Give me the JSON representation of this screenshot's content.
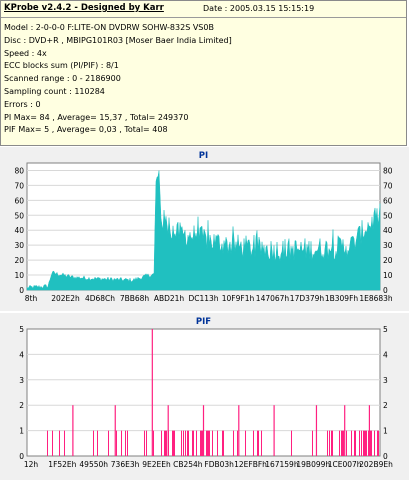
{
  "info": {
    "header": "KProbe v2.4.2 - Designed by Karr",
    "date": "Date : 2005.03.15 15:15:19",
    "lines": [
      "Model : 2-0-0-0 F:LITE-ON DVDRW SOHW-832S  VS0B",
      "Disc : DVD+R , MBIPG101R03 [Moser Baer India Limited]",
      "Speed : 4x",
      "ECC blocks sum (PI/PIF) : 8/1",
      "Scanned range : 0 - 2186900",
      "Sampling count : 110284",
      "Errors : 0",
      "PI Max= 84 , Average= 15,37 , Total= 249370",
      "PIF Max= 5 , Average= 0,03 , Total= 408"
    ]
  },
  "chart_data": [
    {
      "type": "area",
      "title": "PI",
      "color": "#20c0c0",
      "ylim": [
        0,
        85
      ],
      "y_ticks": [
        "0",
        "10",
        "20",
        "30",
        "40",
        "50",
        "60",
        "70",
        "80"
      ],
      "x_ticks": [
        "8th",
        "202E2h",
        "4D68Ch",
        "7BB68h",
        "ABD21h",
        "DC113h",
        "10F9F1h",
        "147067h",
        "17D379h",
        "1B309Fh",
        "1E8683h"
      ],
      "profile": [
        [
          0,
          1
        ],
        [
          0.06,
          2
        ],
        [
          0.07,
          11
        ],
        [
          0.13,
          8
        ],
        [
          0.2,
          7
        ],
        [
          0.3,
          6
        ],
        [
          0.34,
          9
        ],
        [
          0.36,
          10
        ],
        [
          0.365,
          70
        ],
        [
          0.375,
          78
        ],
        [
          0.38,
          48
        ],
        [
          0.42,
          38
        ],
        [
          0.48,
          36
        ],
        [
          0.52,
          33
        ],
        [
          0.58,
          30
        ],
        [
          0.64,
          28
        ],
        [
          0.7,
          27
        ],
        [
          0.78,
          27
        ],
        [
          0.86,
          28
        ],
        [
          0.92,
          30
        ],
        [
          0.96,
          42
        ],
        [
          1.0,
          50
        ]
      ]
    },
    {
      "type": "bar",
      "title": "PIF",
      "color": "#ff2080",
      "ylim": [
        0,
        5
      ],
      "y_ticks": [
        "0",
        "1",
        "2",
        "3",
        "4",
        "5"
      ],
      "x_ticks": [
        "12h",
        "1F52Eh",
        "49550h",
        "736E3h",
        "9E2EEh",
        "CB254h",
        "FDB03h",
        "12EFBFh",
        "167159h",
        "19B099h",
        "1CE007h",
        "202B9Eh"
      ],
      "notable_spikes": [
        {
          "x_frac": 0.355,
          "value": 5
        },
        {
          "x_frac": 0.13,
          "value": 2
        },
        {
          "x_frac": 0.25,
          "value": 2
        },
        {
          "x_frac": 0.4,
          "value": 2
        },
        {
          "x_frac": 0.5,
          "value": 2
        },
        {
          "x_frac": 0.6,
          "value": 2
        },
        {
          "x_frac": 0.7,
          "value": 2
        },
        {
          "x_frac": 0.82,
          "value": 2
        },
        {
          "x_frac": 0.9,
          "value": 2
        },
        {
          "x_frac": 0.97,
          "value": 2
        }
      ]
    }
  ]
}
